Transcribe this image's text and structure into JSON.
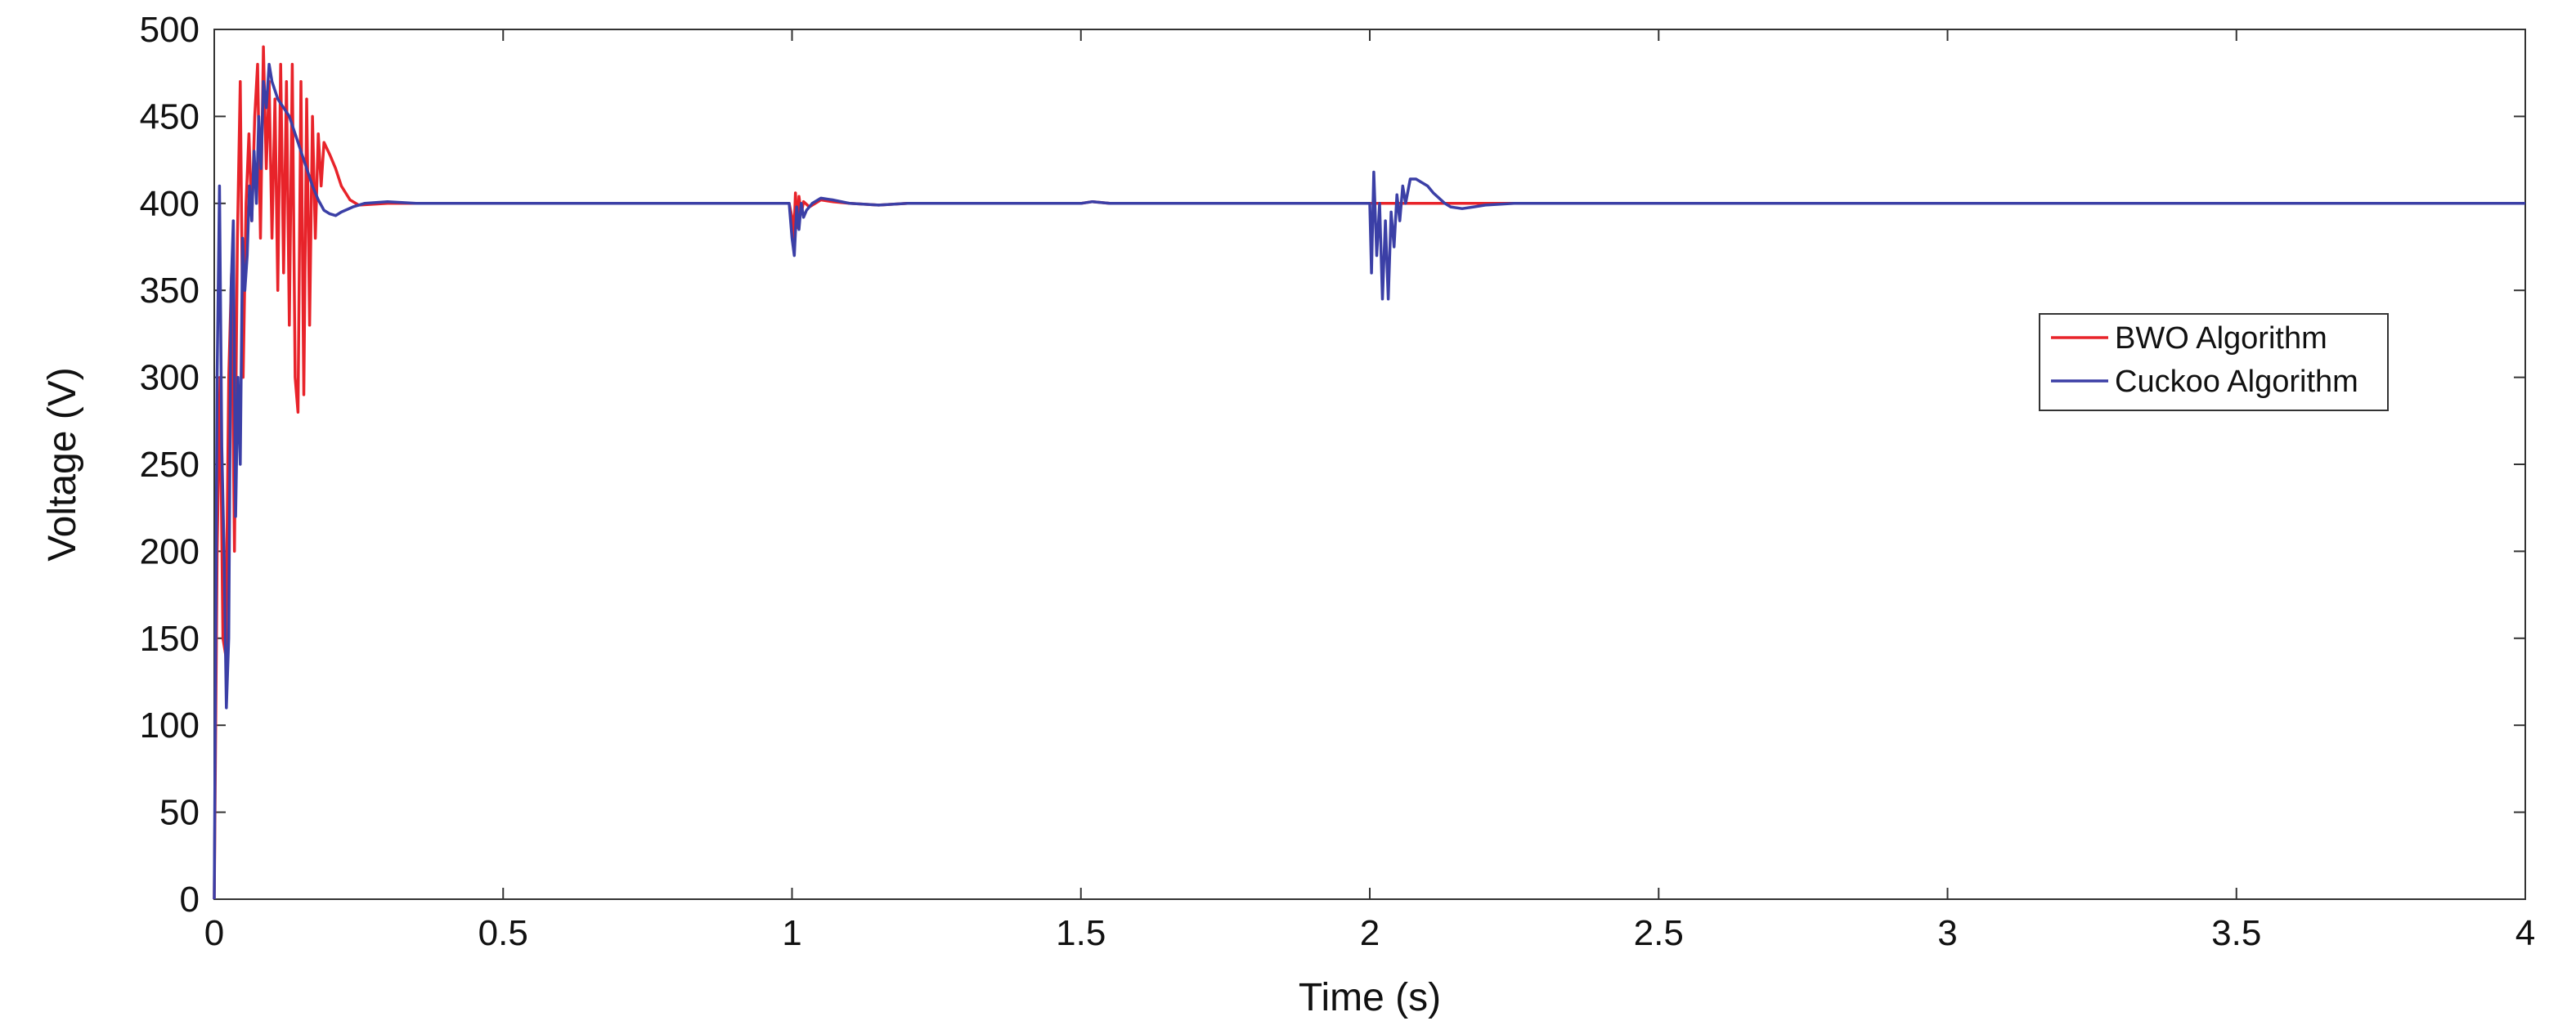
{
  "chart_data": {
    "type": "line",
    "title": "",
    "xlabel": "Time (s)",
    "ylabel": "Voltage (V)",
    "xlim": [
      0,
      4
    ],
    "ylim": [
      0,
      500
    ],
    "xticks": [
      0,
      0.5,
      1,
      1.5,
      2,
      2.5,
      3,
      3.5,
      4
    ],
    "xtick_labels": [
      "0",
      "0.5",
      "1",
      "1.5",
      "2",
      "2.5",
      "3",
      "3.5",
      "4"
    ],
    "yticks": [
      0,
      50,
      100,
      150,
      200,
      250,
      300,
      350,
      400,
      450,
      500
    ],
    "ytick_labels": [
      "0",
      "50",
      "100",
      "150",
      "200",
      "250",
      "300",
      "350",
      "400",
      "450",
      "500"
    ],
    "grid": false,
    "legend_position": "right",
    "series": [
      {
        "name": "BWO Algorithm",
        "color": "#e8232a",
        "points": [
          [
            0,
            0
          ],
          [
            0.005,
            200
          ],
          [
            0.01,
            300
          ],
          [
            0.015,
            150
          ],
          [
            0.02,
            140
          ],
          [
            0.025,
            300
          ],
          [
            0.03,
            360
          ],
          [
            0.035,
            200
          ],
          [
            0.04,
            380
          ],
          [
            0.045,
            470
          ],
          [
            0.05,
            300
          ],
          [
            0.055,
            400
          ],
          [
            0.06,
            440
          ],
          [
            0.065,
            390
          ],
          [
            0.07,
            450
          ],
          [
            0.075,
            480
          ],
          [
            0.08,
            380
          ],
          [
            0.085,
            490
          ],
          [
            0.09,
            420
          ],
          [
            0.095,
            470
          ],
          [
            0.1,
            380
          ],
          [
            0.105,
            460
          ],
          [
            0.11,
            350
          ],
          [
            0.115,
            480
          ],
          [
            0.12,
            360
          ],
          [
            0.125,
            470
          ],
          [
            0.13,
            330
          ],
          [
            0.135,
            480
          ],
          [
            0.14,
            300
          ],
          [
            0.145,
            280
          ],
          [
            0.15,
            470
          ],
          [
            0.155,
            290
          ],
          [
            0.16,
            460
          ],
          [
            0.165,
            330
          ],
          [
            0.17,
            450
          ],
          [
            0.175,
            380
          ],
          [
            0.18,
            440
          ],
          [
            0.185,
            410
          ],
          [
            0.19,
            435
          ],
          [
            0.2,
            428
          ],
          [
            0.21,
            420
          ],
          [
            0.22,
            410
          ],
          [
            0.235,
            402
          ],
          [
            0.25,
            399
          ],
          [
            0.3,
            400
          ],
          [
            0.35,
            400
          ],
          [
            0.5,
            400
          ],
          [
            0.9,
            400
          ],
          [
            0.995,
            400
          ],
          [
            1.0,
            392
          ],
          [
            1.003,
            380
          ],
          [
            1.006,
            406
          ],
          [
            1.009,
            386
          ],
          [
            1.012,
            404
          ],
          [
            1.016,
            394
          ],
          [
            1.02,
            401
          ],
          [
            1.03,
            398
          ],
          [
            1.05,
            402
          ],
          [
            1.07,
            401
          ],
          [
            1.1,
            400
          ],
          [
            1.15,
            399
          ],
          [
            1.2,
            400
          ],
          [
            1.5,
            400
          ],
          [
            1.52,
            401
          ],
          [
            1.55,
            400
          ],
          [
            1.99,
            400
          ],
          [
            2.0,
            400
          ],
          [
            2.05,
            400
          ],
          [
            2.1,
            400
          ],
          [
            2.15,
            400
          ],
          [
            2.2,
            400
          ],
          [
            2.25,
            400
          ],
          [
            2.5,
            400
          ],
          [
            3,
            400
          ],
          [
            3.5,
            400
          ],
          [
            4,
            400
          ]
        ]
      },
      {
        "name": "Cuckoo Algorithm",
        "color": "#3b3fa6",
        "points": [
          [
            0,
            0
          ],
          [
            0.005,
            300
          ],
          [
            0.009,
            410
          ],
          [
            0.013,
            260
          ],
          [
            0.017,
            200
          ],
          [
            0.021,
            110
          ],
          [
            0.025,
            150
          ],
          [
            0.029,
            350
          ],
          [
            0.033,
            390
          ],
          [
            0.037,
            220
          ],
          [
            0.041,
            300
          ],
          [
            0.045,
            250
          ],
          [
            0.049,
            380
          ],
          [
            0.053,
            350
          ],
          [
            0.057,
            370
          ],
          [
            0.061,
            410
          ],
          [
            0.065,
            390
          ],
          [
            0.069,
            430
          ],
          [
            0.073,
            400
          ],
          [
            0.077,
            450
          ],
          [
            0.081,
            420
          ],
          [
            0.085,
            470
          ],
          [
            0.09,
            455
          ],
          [
            0.095,
            480
          ],
          [
            0.1,
            470
          ],
          [
            0.11,
            460
          ],
          [
            0.12,
            455
          ],
          [
            0.13,
            450
          ],
          [
            0.14,
            440
          ],
          [
            0.15,
            430
          ],
          [
            0.16,
            420
          ],
          [
            0.17,
            410
          ],
          [
            0.18,
            402
          ],
          [
            0.19,
            396
          ],
          [
            0.2,
            394
          ],
          [
            0.21,
            393
          ],
          [
            0.22,
            395
          ],
          [
            0.24,
            398
          ],
          [
            0.26,
            400
          ],
          [
            0.3,
            401
          ],
          [
            0.35,
            400
          ],
          [
            0.5,
            400
          ],
          [
            0.9,
            400
          ],
          [
            0.995,
            400
          ],
          [
            1.0,
            380
          ],
          [
            1.004,
            370
          ],
          [
            1.008,
            398
          ],
          [
            1.012,
            385
          ],
          [
            1.016,
            400
          ],
          [
            1.02,
            392
          ],
          [
            1.025,
            396
          ],
          [
            1.035,
            400
          ],
          [
            1.05,
            403
          ],
          [
            1.07,
            402
          ],
          [
            1.1,
            400
          ],
          [
            1.15,
            399
          ],
          [
            1.2,
            400
          ],
          [
            1.5,
            400
          ],
          [
            1.52,
            401
          ],
          [
            1.55,
            400
          ],
          [
            1.99,
            400
          ],
          [
            2.0,
            400
          ],
          [
            2.003,
            360
          ],
          [
            2.007,
            418
          ],
          [
            2.012,
            370
          ],
          [
            2.017,
            400
          ],
          [
            2.022,
            345
          ],
          [
            2.027,
            390
          ],
          [
            2.032,
            345
          ],
          [
            2.037,
            395
          ],
          [
            2.042,
            375
          ],
          [
            2.047,
            405
          ],
          [
            2.052,
            390
          ],
          [
            2.057,
            410
          ],
          [
            2.062,
            400
          ],
          [
            2.07,
            414
          ],
          [
            2.08,
            414
          ],
          [
            2.09,
            412
          ],
          [
            2.1,
            410
          ],
          [
            2.11,
            406
          ],
          [
            2.12,
            403
          ],
          [
            2.13,
            400
          ],
          [
            2.14,
            398
          ],
          [
            2.16,
            397
          ],
          [
            2.18,
            398
          ],
          [
            2.2,
            399
          ],
          [
            2.25,
            400
          ],
          [
            2.3,
            400
          ],
          [
            2.5,
            400
          ],
          [
            3,
            400
          ],
          [
            3.5,
            400
          ],
          [
            4,
            400
          ]
        ]
      }
    ]
  }
}
